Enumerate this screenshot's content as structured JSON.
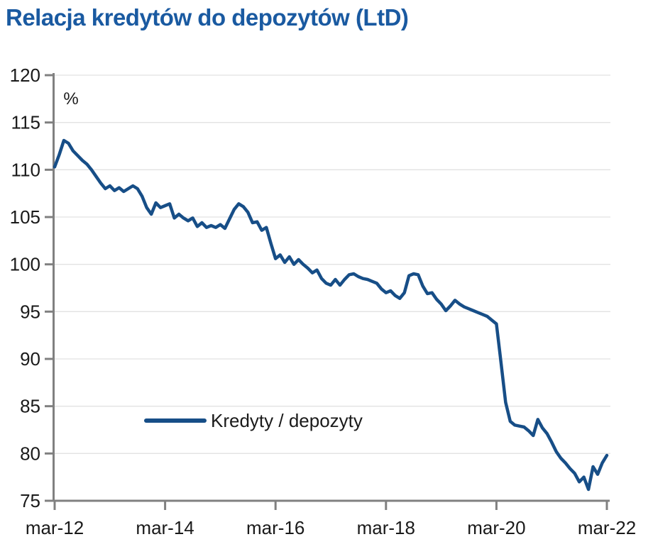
{
  "page": {
    "title": "Relacja kredytów do depozytów (LtD)"
  },
  "chart": {
    "unit_label": "%",
    "legend": {
      "series_label": "Kredyty / depozyty"
    },
    "colors": {
      "title_text": "#1A5AA1",
      "series_line": "#174E87",
      "axis": "#808080",
      "gridline": "#E2E2E2",
      "tick_text": "#1A1A1A"
    },
    "y_axis": {
      "ticks": [
        120,
        115,
        110,
        105,
        100,
        95,
        90,
        85,
        80,
        75
      ],
      "min": 75,
      "max": 120
    },
    "x_axis": {
      "tick_labels": [
        "mar-12",
        "mar-14",
        "mar-16",
        "mar-18",
        "mar-20",
        "mar-22"
      ]
    }
  },
  "chart_data": {
    "type": "line",
    "title": "Relacja kredytów do depozytów (LtD)",
    "xlabel": "",
    "ylabel": "%",
    "ylim": [
      75,
      120
    ],
    "yticks": [
      120,
      115,
      110,
      105,
      100,
      95,
      90,
      85,
      80,
      75
    ],
    "x_tick_labels": [
      "mar-12",
      "mar-14",
      "mar-16",
      "mar-18",
      "mar-20",
      "mar-22"
    ],
    "grid": "horizontal",
    "legend_position": "inside-lower-left",
    "series": [
      {
        "name": "Kredyty / depozyty",
        "frequency": "monthly",
        "x_start": "mar-12",
        "x_end": "mar-22",
        "values": [
          110.3,
          111.6,
          113.1,
          112.8,
          112.0,
          111.5,
          111.0,
          110.6,
          110.0,
          109.3,
          108.6,
          108.0,
          108.3,
          107.8,
          108.1,
          107.7,
          108.0,
          108.3,
          108.0,
          107.2,
          106.0,
          105.3,
          106.5,
          106.0,
          106.2,
          106.4,
          104.9,
          105.3,
          104.9,
          104.6,
          104.9,
          104.0,
          104.4,
          103.9,
          104.1,
          103.9,
          104.2,
          103.8,
          104.8,
          105.8,
          106.4,
          106.1,
          105.5,
          104.4,
          104.5,
          103.6,
          103.9,
          102.2,
          100.6,
          101.0,
          100.2,
          100.8,
          100.0,
          100.5,
          100.0,
          99.6,
          99.1,
          99.4,
          98.5,
          98.0,
          97.8,
          98.4,
          97.8,
          98.4,
          98.9,
          99.0,
          98.7,
          98.5,
          98.4,
          98.2,
          98.0,
          97.4,
          97.0,
          97.2,
          96.7,
          96.4,
          97.0,
          98.8,
          99.0,
          98.9,
          97.7,
          96.9,
          97.0,
          96.3,
          95.8,
          95.1,
          95.6,
          96.2,
          95.8,
          95.5,
          95.3,
          95.1,
          94.9,
          94.7,
          94.5,
          94.1,
          93.7,
          89.6,
          85.4,
          83.4,
          83.0,
          82.9,
          82.8,
          82.4,
          81.9,
          83.6,
          82.7,
          82.1,
          81.2,
          80.2,
          79.5,
          79.0,
          78.4,
          77.9,
          77.0,
          77.5,
          76.2,
          78.6,
          77.8,
          79.0,
          79.8
        ]
      }
    ]
  }
}
